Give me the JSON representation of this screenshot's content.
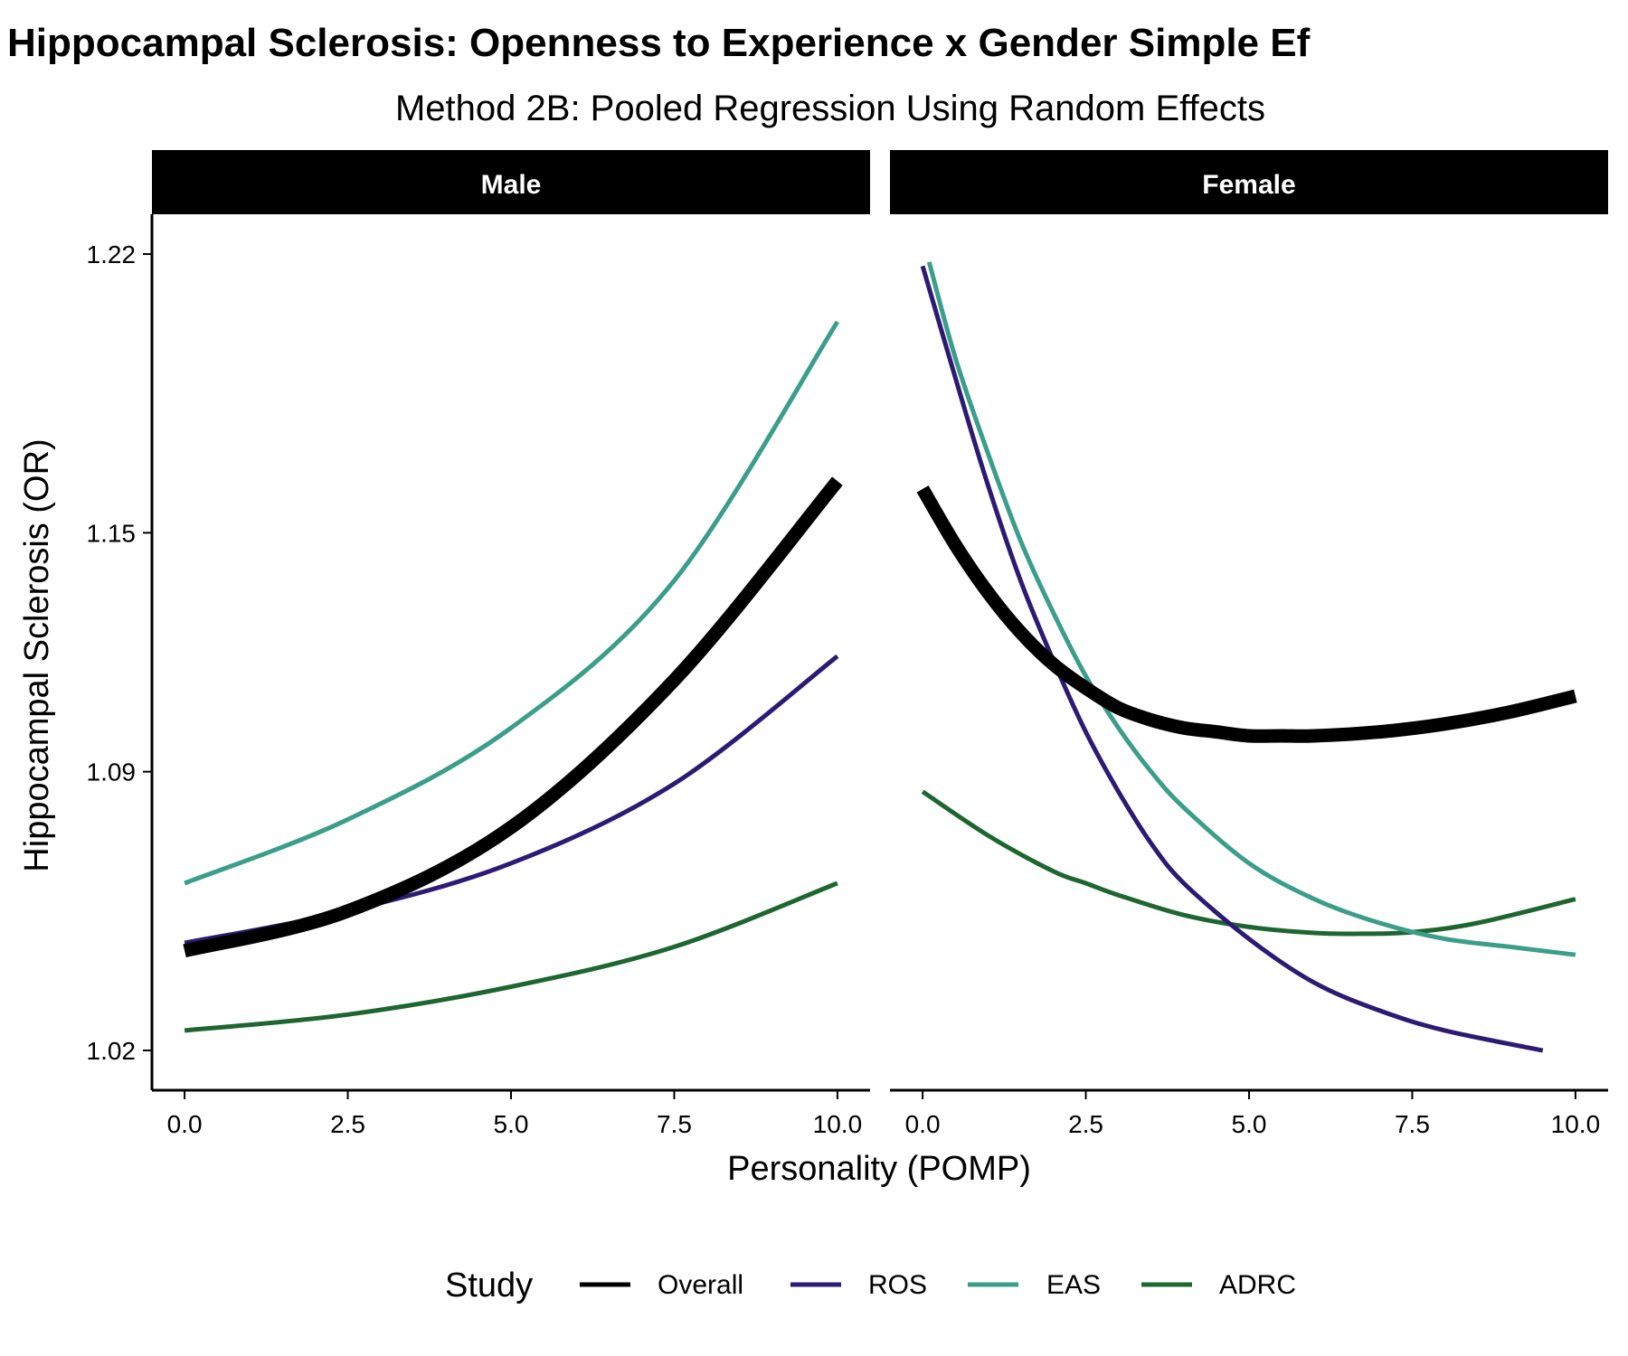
{
  "chart_data": {
    "type": "line",
    "title": "Hippocampal Sclerosis: Openness to Experience x Gender Simple Ef",
    "subtitle": "Method 2B: Pooled Regression Using Random Effects",
    "xlabel": "Personality (POMP)",
    "ylabel": "Hippocampal Sclerosis (OR)",
    "xlim": [
      -0.5,
      10.5
    ],
    "ylim": [
      1.01,
      1.23
    ],
    "x_ticks": [
      0,
      2.5,
      5,
      7.5,
      10
    ],
    "x_tick_labels": [
      "0.0",
      "2.5",
      "5.0",
      "7.5",
      "10.0"
    ],
    "y_ticks": [
      1.02,
      1.09,
      1.15,
      1.22
    ],
    "y_tick_labels": [
      "1.02",
      "1.09",
      "1.15",
      "1.22"
    ],
    "legend": {
      "title": "Study",
      "position": "bottom",
      "entries": [
        {
          "name": "Overall",
          "color": "#000000"
        },
        {
          "name": "ROS",
          "color": "#2c1a73"
        },
        {
          "name": "EAS",
          "color": "#3a9e8a"
        },
        {
          "name": "ADRC",
          "color": "#1e6630"
        }
      ]
    },
    "panels": [
      {
        "label": "Male",
        "series": [
          {
            "name": "ADRC",
            "x": [
              0,
              2.5,
              5,
              7.5,
              10
            ],
            "y": [
              1.025,
              1.029,
              1.036,
              1.046,
              1.062
            ]
          },
          {
            "name": "ROS",
            "x": [
              0,
              2.5,
              5,
              7.5,
              10
            ],
            "y": [
              1.047,
              1.055,
              1.067,
              1.087,
              1.119
            ]
          },
          {
            "name": "EAS",
            "x": [
              0,
              2.5,
              5,
              7.5,
              10
            ],
            "y": [
              1.062,
              1.078,
              1.101,
              1.138,
              1.203
            ]
          },
          {
            "name": "Overall",
            "x": [
              0,
              2.5,
              5,
              7.5,
              10
            ],
            "y": [
              1.045,
              1.055,
              1.076,
              1.113,
              1.163
            ]
          }
        ]
      },
      {
        "label": "Female",
        "series": [
          {
            "name": "ADRC",
            "x": [
              0,
              1,
              2,
              2.5,
              3,
              4,
              5,
              6,
              6.7,
              7.5,
              8.5,
              10
            ],
            "y": [
              1.085,
              1.074,
              1.065,
              1.062,
              1.059,
              1.054,
              1.051,
              1.0495,
              1.0493,
              1.0497,
              1.052,
              1.058
            ]
          },
          {
            "name": "ROS",
            "x": [
              0,
              0.5,
              1,
              1.5,
              2,
              2.5,
              3,
              3.5,
              4,
              5,
              6,
              7,
              8,
              9.5
            ],
            "y": [
              1.217,
              1.189,
              1.162,
              1.138,
              1.118,
              1.1,
              1.085,
              1.072,
              1.062,
              1.048,
              1.037,
              1.03,
              1.025,
              1.02
            ]
          },
          {
            "name": "EAS",
            "x": [
              0.1,
              0.5,
              1,
              1.5,
              2,
              2.5,
              3,
              3.5,
              4,
              5,
              6,
              7,
              8,
              9,
              10
            ],
            "y": [
              1.218,
              1.194,
              1.17,
              1.148,
              1.13,
              1.114,
              1.101,
              1.09,
              1.081,
              1.067,
              1.058,
              1.052,
              1.048,
              1.046,
              1.044
            ]
          },
          {
            "name": "Overall",
            "x": [
              0,
              0.5,
              1,
              1.5,
              2,
              2.5,
              3,
              3.5,
              4,
              4.5,
              5,
              5.5,
              6,
              7,
              8,
              9,
              10
            ],
            "y": [
              1.161,
              1.147,
              1.135,
              1.125,
              1.117,
              1.111,
              1.106,
              1.103,
              1.101,
              1.1,
              1.099,
              1.099,
              1.099,
              1.1,
              1.102,
              1.105,
              1.109
            ]
          }
        ]
      }
    ]
  }
}
